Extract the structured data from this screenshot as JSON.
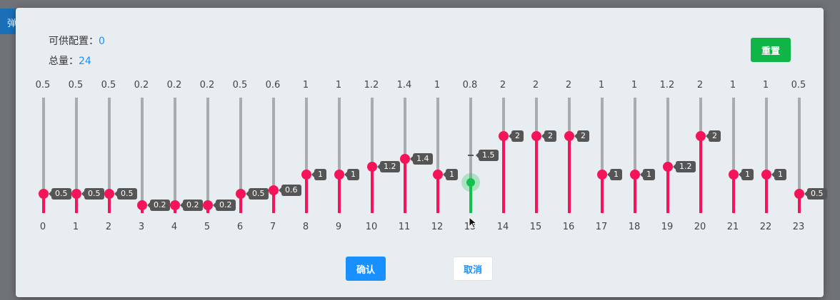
{
  "background": {
    "tab_label": "弹"
  },
  "dialog": {
    "available_label": "可供配置：",
    "available_value": "0",
    "total_label": "总量：",
    "total_value": "24",
    "reset_label": "重置",
    "confirm_label": "确认",
    "cancel_label": "取消"
  },
  "colors": {
    "track": "#f5135a",
    "active": "#13c24c",
    "accent": "#1890ff",
    "reset": "#10b548"
  },
  "sliders": [
    {
      "hour": "0",
      "max": "0.5",
      "value": 0.5
    },
    {
      "hour": "1",
      "max": "0.5",
      "value": 0.5
    },
    {
      "hour": "2",
      "max": "0.5",
      "value": 0.5
    },
    {
      "hour": "3",
      "max": "0.2",
      "value": 0.2
    },
    {
      "hour": "4",
      "max": "0.2",
      "value": 0.2
    },
    {
      "hour": "5",
      "max": "0.2",
      "value": 0.2
    },
    {
      "hour": "6",
      "max": "0.5",
      "value": 0.5
    },
    {
      "hour": "7",
      "max": "0.6",
      "value": 0.6
    },
    {
      "hour": "8",
      "max": "1",
      "value": 1
    },
    {
      "hour": "9",
      "max": "1",
      "value": 1
    },
    {
      "hour": "10",
      "max": "1.2",
      "value": 1.2
    },
    {
      "hour": "11",
      "max": "1.4",
      "value": 1.4
    },
    {
      "hour": "12",
      "max": "1",
      "value": 1
    },
    {
      "hour": "13",
      "max": "0.8",
      "value": 0.8,
      "active": true,
      "marker": 1.5
    },
    {
      "hour": "14",
      "max": "2",
      "value": 2
    },
    {
      "hour": "15",
      "max": "2",
      "value": 2
    },
    {
      "hour": "16",
      "max": "2",
      "value": 2
    },
    {
      "hour": "17",
      "max": "1",
      "value": 1
    },
    {
      "hour": "18",
      "max": "1",
      "value": 1
    },
    {
      "hour": "19",
      "max": "1.2",
      "value": 1.2
    },
    {
      "hour": "20",
      "max": "2",
      "value": 2
    },
    {
      "hour": "21",
      "max": "1",
      "value": 1
    },
    {
      "hour": "22",
      "max": "1",
      "value": 1
    },
    {
      "hour": "23",
      "max": "0.5",
      "value": 0.5
    }
  ],
  "scale_max": 3
}
